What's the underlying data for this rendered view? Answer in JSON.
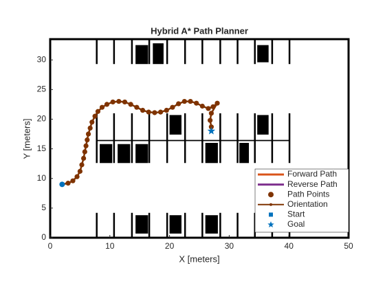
{
  "chart_data": {
    "type": "path-planner",
    "title": "Hybrid A* Path Planner",
    "x_label": "X [meters]",
    "y_label": "Y [meters]",
    "xlim": [
      0,
      50
    ],
    "ylim": [
      0,
      33.5
    ],
    "xticks": [
      0,
      10,
      20,
      30,
      40,
      50
    ],
    "yticks": [
      0,
      5,
      10,
      15,
      20,
      25,
      30
    ],
    "path": {
      "name": "Path Points",
      "color": "#7f3300",
      "x": [
        2,
        3,
        3.8,
        4.5,
        5,
        5.3,
        5.6,
        5.8,
        6,
        6.2,
        6.4,
        6.7,
        7,
        7.5,
        8,
        8.7,
        9.5,
        10.5,
        11.5,
        12.5,
        13.5,
        14.5,
        15.5,
        16.5,
        17.5,
        18.5,
        19.5,
        20.5,
        21.5,
        22.5,
        23.5,
        24.5,
        25.5,
        26.5,
        27.3,
        28,
        27,
        26.8,
        27
      ],
      "y": [
        9,
        9.2,
        9.6,
        10.3,
        11.2,
        12.3,
        13.4,
        14.5,
        15.5,
        16.5,
        17.5,
        18.5,
        19.5,
        20.5,
        21.3,
        22,
        22.5,
        22.9,
        23,
        22.9,
        22.5,
        22,
        21.5,
        21.2,
        21.1,
        21.2,
        21.5,
        22,
        22.6,
        23,
        23,
        22.7,
        22.2,
        21.8,
        22.1,
        22.7,
        21,
        19.8,
        18.7
      ]
    },
    "start": {
      "name": "Start",
      "color": "#0072BD",
      "x": 2,
      "y": 9
    },
    "goal": {
      "name": "Goal",
      "color": "#0072BD",
      "x": 27,
      "y": 18
    },
    "legend_lines": [
      {
        "name": "Forward Path",
        "color": "#D95319"
      },
      {
        "name": "Reverse Path",
        "color": "#7E2F8E"
      }
    ],
    "orientation": {
      "name": "Orientation",
      "color": "#7f3300"
    },
    "legend": "lower right",
    "lane_x": [
      7.8,
      10.7,
      13.7,
      16.6,
      19.6,
      22.6,
      25.5,
      28.5,
      31.4,
      34.3,
      37.2,
      40.1
    ],
    "lane_rows": [
      [
        29.3,
        33.5
      ],
      [
        12.6,
        21
      ],
      [
        0,
        4.2
      ]
    ],
    "obstacles": [
      [
        14.3,
        29.3,
        16.4,
        32.5
      ],
      [
        17.2,
        29.3,
        19,
        32.8
      ],
      [
        34.7,
        29.6,
        36.6,
        32.5
      ],
      [
        8.3,
        12.6,
        10.4,
        15.8
      ],
      [
        11.3,
        12.6,
        13.4,
        15.8
      ],
      [
        14.3,
        12.6,
        16.4,
        15.8
      ],
      [
        20,
        17.4,
        22,
        20.7
      ],
      [
        26,
        12.6,
        28.1,
        16
      ],
      [
        31.7,
        12.6,
        33.3,
        16
      ],
      [
        34.7,
        17.4,
        36.6,
        20.7
      ],
      [
        14.3,
        0.7,
        16.4,
        3.8
      ],
      [
        20,
        0.7,
        22,
        3.8
      ],
      [
        26,
        0.7,
        28.1,
        3.8
      ],
      [
        7.8,
        16.3,
        40.1,
        16.5
      ]
    ]
  }
}
